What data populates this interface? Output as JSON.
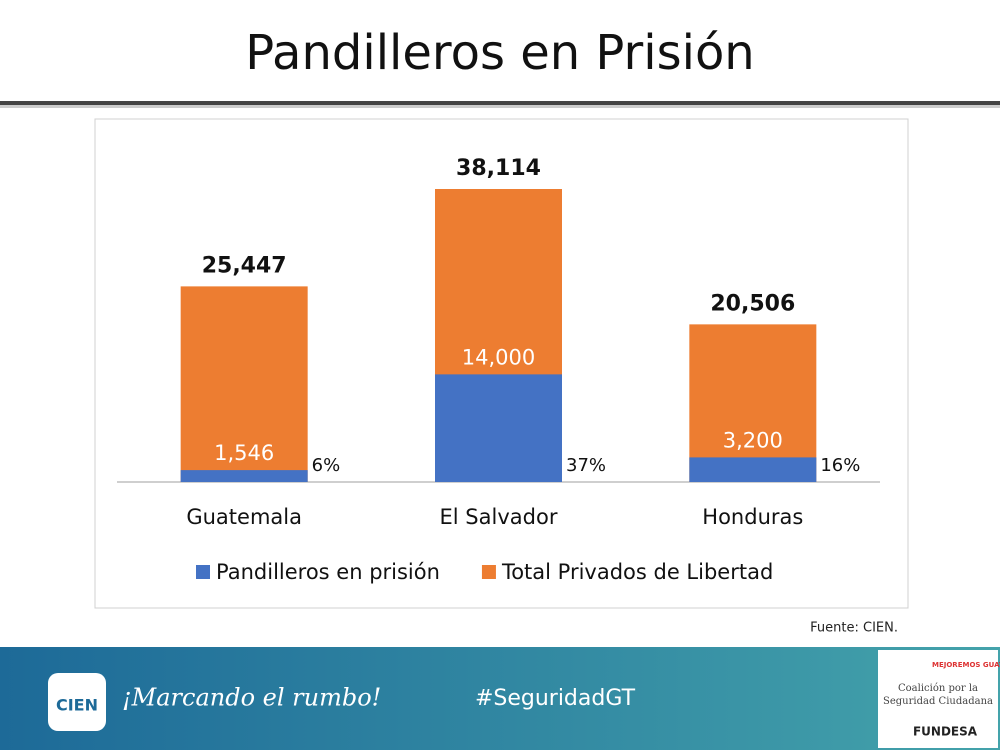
{
  "slide": {
    "title": "Pandilleros en Prisión",
    "source": "Fuente: CIEN.",
    "logo": "CIEN",
    "tagline": "¡Marcando el rumbo!",
    "hashtag": "#SeguridadGT",
    "partner_top": "MEJOREMOS GUATE",
    "partner_middle": "Coalición por la Seguridad Ciudadana",
    "partner_bottom": "FUNDESA"
  },
  "chart_data": {
    "type": "bar",
    "overlay": true,
    "categories": [
      "Guatemala",
      "El Salvador",
      "Honduras"
    ],
    "series": [
      {
        "name": "Pandilleros en prisión",
        "color": "#4472c4",
        "values": [
          1546,
          14000,
          3200
        ],
        "value_labels": [
          "1,546",
          "14,000",
          "3,200"
        ]
      },
      {
        "name": "Total Privados de Libertad",
        "color": "#ed7d31",
        "values": [
          25447,
          38114,
          20506
        ],
        "value_labels": [
          "25,447",
          "38,114",
          "20,506"
        ]
      }
    ],
    "annotations": [
      "6%",
      "37%",
      "16%"
    ],
    "legend": "bottom"
  }
}
